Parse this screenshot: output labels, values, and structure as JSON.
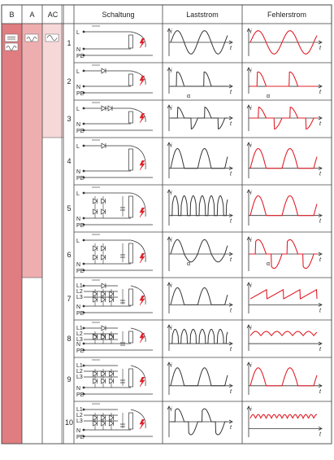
{
  "header": {
    "b": "B",
    "a": "A",
    "ac": "AC",
    "schaltung": "Schaltung",
    "laststrom": "Laststrom",
    "fehlerstrom": "Fehlerstrom"
  },
  "labels": {
    "L": "L",
    "N": "N",
    "PE": "PE",
    "L1": "L1",
    "L2": "L2",
    "L3": "L3",
    "iL": "i",
    "iL_sub": "L",
    "iF": "i",
    "iF_sub": "F",
    "t": "t",
    "alpha": "α"
  },
  "rows": [
    {
      "num": "1"
    },
    {
      "num": "2"
    },
    {
      "num": "3"
    },
    {
      "num": "4"
    },
    {
      "num": "5"
    },
    {
      "num": "6"
    },
    {
      "num": "7"
    },
    {
      "num": "8"
    },
    {
      "num": "9"
    },
    {
      "num": "10"
    }
  ],
  "colors": {
    "b_column": "#e07d80",
    "a_column": "#eeaeb0",
    "ac_column": "#f7d8d9",
    "fault_wave": "#e0202a",
    "load_wave": "#333333",
    "grid": "#444444"
  }
}
